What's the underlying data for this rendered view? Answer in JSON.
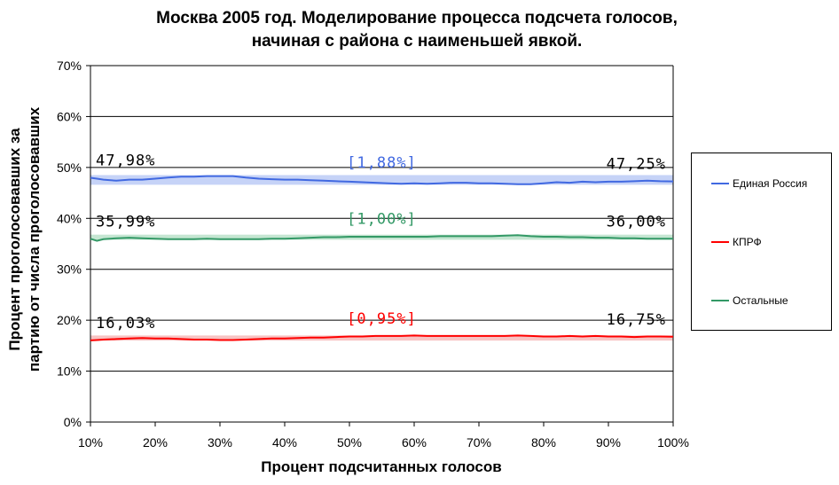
{
  "title": {
    "line1": "Москва 2005 год. Моделирование процесса подсчета голосов,",
    "line2": "начиная с района с наименьшей явкой."
  },
  "chart_data": {
    "type": "line",
    "xlabel": "Процент подсчитанных голосов",
    "ylabel_line1": "Процент проголосовавших за",
    "ylabel_line2": "партию от числа проголосовавших",
    "xlim": [
      10,
      100
    ],
    "ylim": [
      0,
      70
    ],
    "x_ticks": [
      "10%",
      "20%",
      "30%",
      "40%",
      "50%",
      "60%",
      "70%",
      "80%",
      "90%",
      "100%"
    ],
    "y_ticks": [
      "0%",
      "10%",
      "20%",
      "30%",
      "40%",
      "50%",
      "60%",
      "70%"
    ],
    "grid": "horizontal",
    "legend_position": "right",
    "x": [
      10,
      11,
      12,
      14,
      16,
      18,
      20,
      22,
      24,
      26,
      28,
      30,
      32,
      34,
      36,
      38,
      40,
      42,
      44,
      46,
      48,
      50,
      52,
      54,
      56,
      58,
      60,
      62,
      64,
      66,
      68,
      70,
      72,
      74,
      76,
      78,
      80,
      82,
      84,
      86,
      88,
      90,
      92,
      94,
      96,
      98,
      100
    ],
    "series": [
      {
        "name": "Единая Россия",
        "color": "#4169E1",
        "band_color": "#C6D3F7",
        "band": [
          46.6,
          48.5
        ],
        "values": [
          47.98,
          47.8,
          47.6,
          47.4,
          47.6,
          47.6,
          47.8,
          48.0,
          48.2,
          48.2,
          48.3,
          48.3,
          48.3,
          48.0,
          47.8,
          47.7,
          47.6,
          47.6,
          47.5,
          47.4,
          47.3,
          47.2,
          47.1,
          47.0,
          46.9,
          46.8,
          46.9,
          46.8,
          46.9,
          47.0,
          47.0,
          46.9,
          46.9,
          46.8,
          46.7,
          46.7,
          46.9,
          47.1,
          47.0,
          47.2,
          47.1,
          47.2,
          47.2,
          47.3,
          47.4,
          47.3,
          47.25
        ]
      },
      {
        "name": "КПРФ",
        "color": "#FF0000",
        "band_color": "#F7C3C3",
        "band": [
          16.0,
          17.0
        ],
        "values": [
          16.03,
          16.1,
          16.2,
          16.3,
          16.4,
          16.5,
          16.4,
          16.4,
          16.3,
          16.2,
          16.2,
          16.1,
          16.1,
          16.2,
          16.3,
          16.4,
          16.4,
          16.5,
          16.6,
          16.6,
          16.7,
          16.8,
          16.8,
          16.9,
          16.9,
          16.9,
          17.0,
          16.9,
          16.9,
          16.9,
          16.9,
          16.9,
          16.9,
          16.9,
          17.0,
          16.9,
          16.8,
          16.8,
          16.9,
          16.8,
          16.9,
          16.8,
          16.8,
          16.7,
          16.8,
          16.8,
          16.75
        ]
      },
      {
        "name": "Остальные",
        "color": "#339966",
        "band_color": "#C5E6D2",
        "band": [
          35.8,
          36.8
        ],
        "values": [
          35.99,
          35.6,
          35.9,
          36.1,
          36.2,
          36.1,
          36.0,
          35.9,
          35.9,
          35.9,
          36.0,
          35.9,
          35.9,
          35.9,
          35.9,
          36.0,
          36.0,
          36.1,
          36.2,
          36.3,
          36.3,
          36.4,
          36.4,
          36.4,
          36.4,
          36.4,
          36.4,
          36.4,
          36.5,
          36.5,
          36.5,
          36.5,
          36.5,
          36.6,
          36.7,
          36.5,
          36.4,
          36.4,
          36.3,
          36.3,
          36.2,
          36.2,
          36.1,
          36.1,
          36.0,
          36.0,
          36.0
        ]
      }
    ],
    "annotations": [
      {
        "text": "47,98%",
        "x": 10,
        "y": 47.98,
        "align": "start",
        "color": "#000000"
      },
      {
        "text": "47,25%",
        "x": 100,
        "y": 47.25,
        "align": "end",
        "color": "#000000"
      },
      {
        "text": "[1,88%]",
        "x": 55,
        "y": 47.5,
        "align": "middle",
        "color": "#4169E1"
      },
      {
        "text": "35,99%",
        "x": 10,
        "y": 35.99,
        "align": "start",
        "color": "#000000"
      },
      {
        "text": "36,00%",
        "x": 100,
        "y": 36.0,
        "align": "end",
        "color": "#000000"
      },
      {
        "text": "[1,00%]",
        "x": 55,
        "y": 36.5,
        "align": "middle",
        "color": "#339966"
      },
      {
        "text": "16,03%",
        "x": 10,
        "y": 16.03,
        "align": "start",
        "color": "#000000"
      },
      {
        "text": "16,75%",
        "x": 100,
        "y": 16.75,
        "align": "end",
        "color": "#000000"
      },
      {
        "text": "[0,95%]",
        "x": 55,
        "y": 16.9,
        "align": "middle",
        "color": "#FF0000"
      }
    ]
  }
}
